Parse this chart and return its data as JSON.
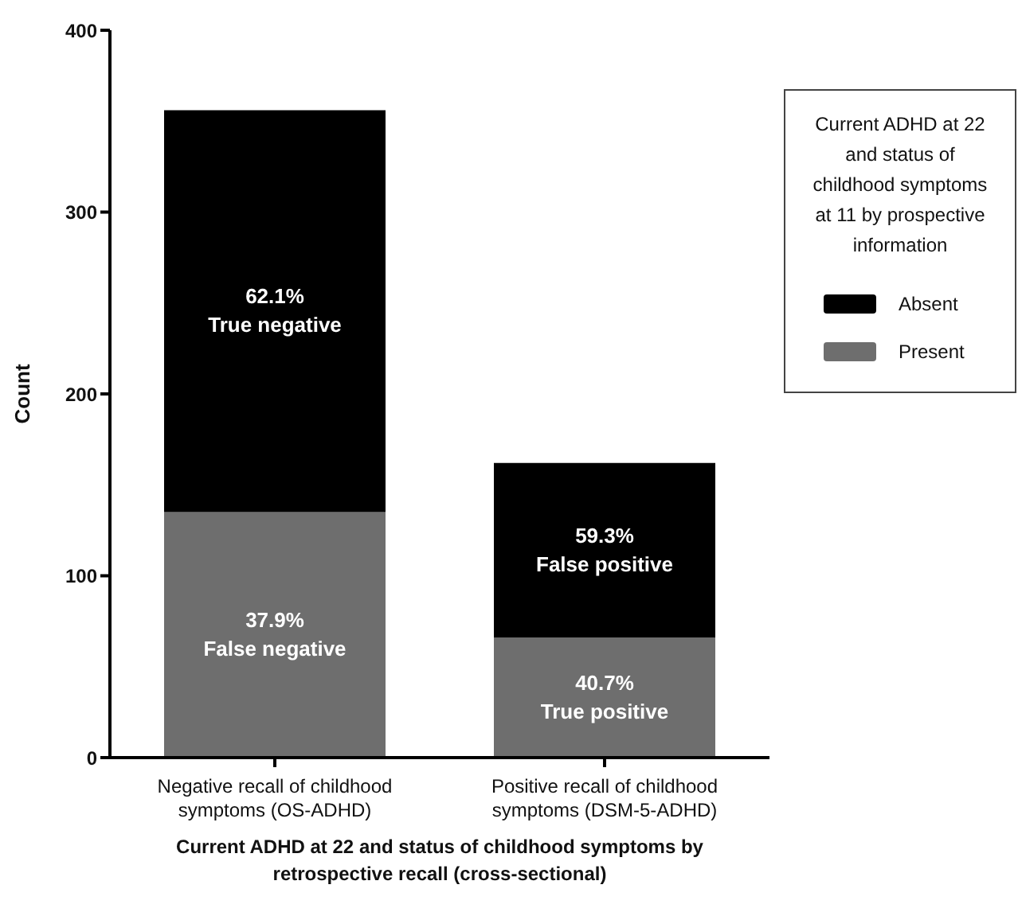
{
  "chart_data": {
    "type": "bar",
    "stacked": true,
    "xlabel": "Current ADHD at 22 and status of childhood symptoms by retrospective recall (cross-sectional)",
    "ylabel": "Count",
    "legend_title": "Current ADHD at 22 and status of childhood symptoms at 11 by prospective information",
    "categories": [
      "Negative recall of childhood symptoms (OS-ADHD)",
      "Positive recall of childhood symptoms (DSM-5-ADHD)"
    ],
    "series": [
      {
        "name": "Present",
        "color": "#6e6e6e",
        "values": [
          135,
          66
        ]
      },
      {
        "name": "Absent",
        "color": "#000000",
        "values": [
          221,
          96
        ]
      }
    ],
    "annotations": [
      "62.1%\nTrue negative",
      "37.9%\nFalse negative",
      "59.3%\nFalse positive",
      "40.7%\nTrue positive"
    ],
    "ylim": [
      0,
      400
    ],
    "yticks": [
      0,
      100,
      200,
      300,
      400
    ],
    "grid": false,
    "legend": "right"
  }
}
